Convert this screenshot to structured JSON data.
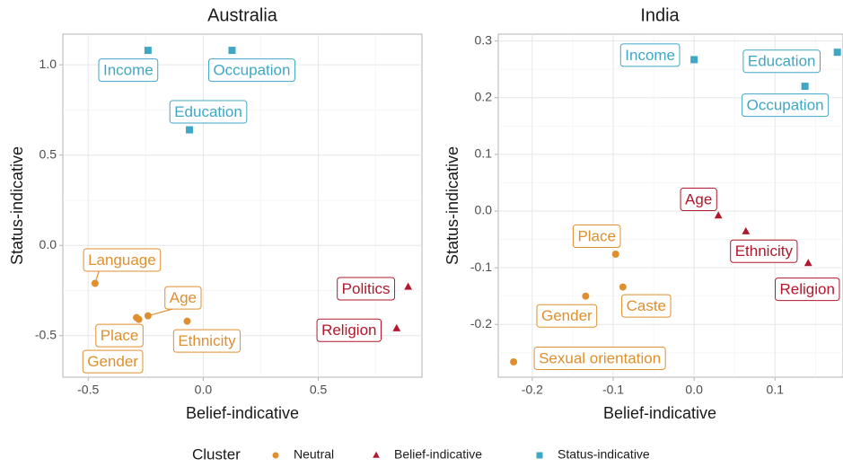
{
  "legend_title": "Cluster",
  "chart_data": [
    {
      "type": "scatter",
      "title": "Australia",
      "xlabel": "Belief-indicative",
      "ylabel": "Status-indicative",
      "xlim": [
        -0.61,
        0.95
      ],
      "ylim": [
        -0.73,
        1.17
      ],
      "xticks": [
        -0.5,
        {
          "value": 0,
          "label": "0.0"
        },
        0.5
      ],
      "yticks": [
        -0.5,
        {
          "value": 0,
          "label": "0.0"
        },
        0.5,
        {
          "value": 1,
          "label": "1.0"
        }
      ],
      "minor_xticks": [
        -0.25,
        0.25,
        0.75
      ],
      "minor_yticks": [
        -0.25,
        0.25,
        0.75
      ],
      "grid": true,
      "series": [
        {
          "name": "Neutral",
          "color": "#df8f2e",
          "shape": "circle",
          "labels": [
            "Language",
            "Age",
            "Place",
            "Gender",
            "Ethnicity"
          ],
          "x": [
            -0.47,
            -0.24,
            -0.29,
            -0.28,
            -0.07
          ],
          "values": [
            -0.21,
            -0.39,
            -0.4,
            -0.41,
            -0.42
          ]
        },
        {
          "name": "Belief-indicative",
          "color": "#b2182b",
          "shape": "triangle",
          "labels": [
            "Politics",
            "Religion"
          ],
          "x": [
            0.89,
            0.84
          ],
          "values": [
            -0.23,
            -0.46
          ]
        },
        {
          "name": "Status-indicative",
          "color": "#3fa7c4",
          "shape": "square",
          "labels": [
            "Income",
            "Occupation",
            "Education"
          ],
          "x": [
            -0.24,
            0.125,
            -0.06
          ],
          "values": [
            1.08,
            1.08,
            0.64
          ]
        }
      ]
    },
    {
      "type": "scatter",
      "title": "India",
      "xlabel": "Belief-indicative",
      "ylabel": "Status-indicative",
      "xlim": [
        -0.242,
        0.184
      ],
      "ylim": [
        -0.293,
        0.312
      ],
      "xticks": [
        -0.2,
        -0.1,
        {
          "value": 0,
          "label": "0.0"
        },
        0.1
      ],
      "yticks": [
        -0.2,
        -0.1,
        {
          "value": 0,
          "label": "0.0"
        },
        0.1,
        0.2,
        0.3
      ],
      "minor_xticks": [
        -0.15,
        -0.05,
        0.05,
        0.15
      ],
      "minor_yticks": [
        -0.25,
        -0.15,
        -0.05,
        0.05,
        0.15,
        0.25
      ],
      "grid": true,
      "series": [
        {
          "name": "Neutral",
          "color": "#df8f2e",
          "shape": "circle",
          "labels": [
            "Place",
            "Caste",
            "Gender",
            "Sexual orientation"
          ],
          "x": [
            -0.097,
            -0.088,
            -0.134,
            -0.223
          ],
          "values": [
            -0.076,
            -0.134,
            -0.15,
            -0.266
          ]
        },
        {
          "name": "Belief-indicative",
          "color": "#b2182b",
          "shape": "triangle",
          "labels": [
            "Age",
            "Ethnicity",
            "Religion"
          ],
          "x": [
            0.03,
            0.064,
            0.141
          ],
          "values": [
            -0.008,
            -0.036,
            -0.092
          ]
        },
        {
          "name": "Status-indicative",
          "color": "#3fa7c4",
          "shape": "square",
          "labels": [
            "Income",
            "Education",
            "Occupation"
          ],
          "x": [
            0.0,
            0.177,
            0.137
          ],
          "values": [
            0.267,
            0.28,
            0.22
          ]
        }
      ]
    }
  ]
}
